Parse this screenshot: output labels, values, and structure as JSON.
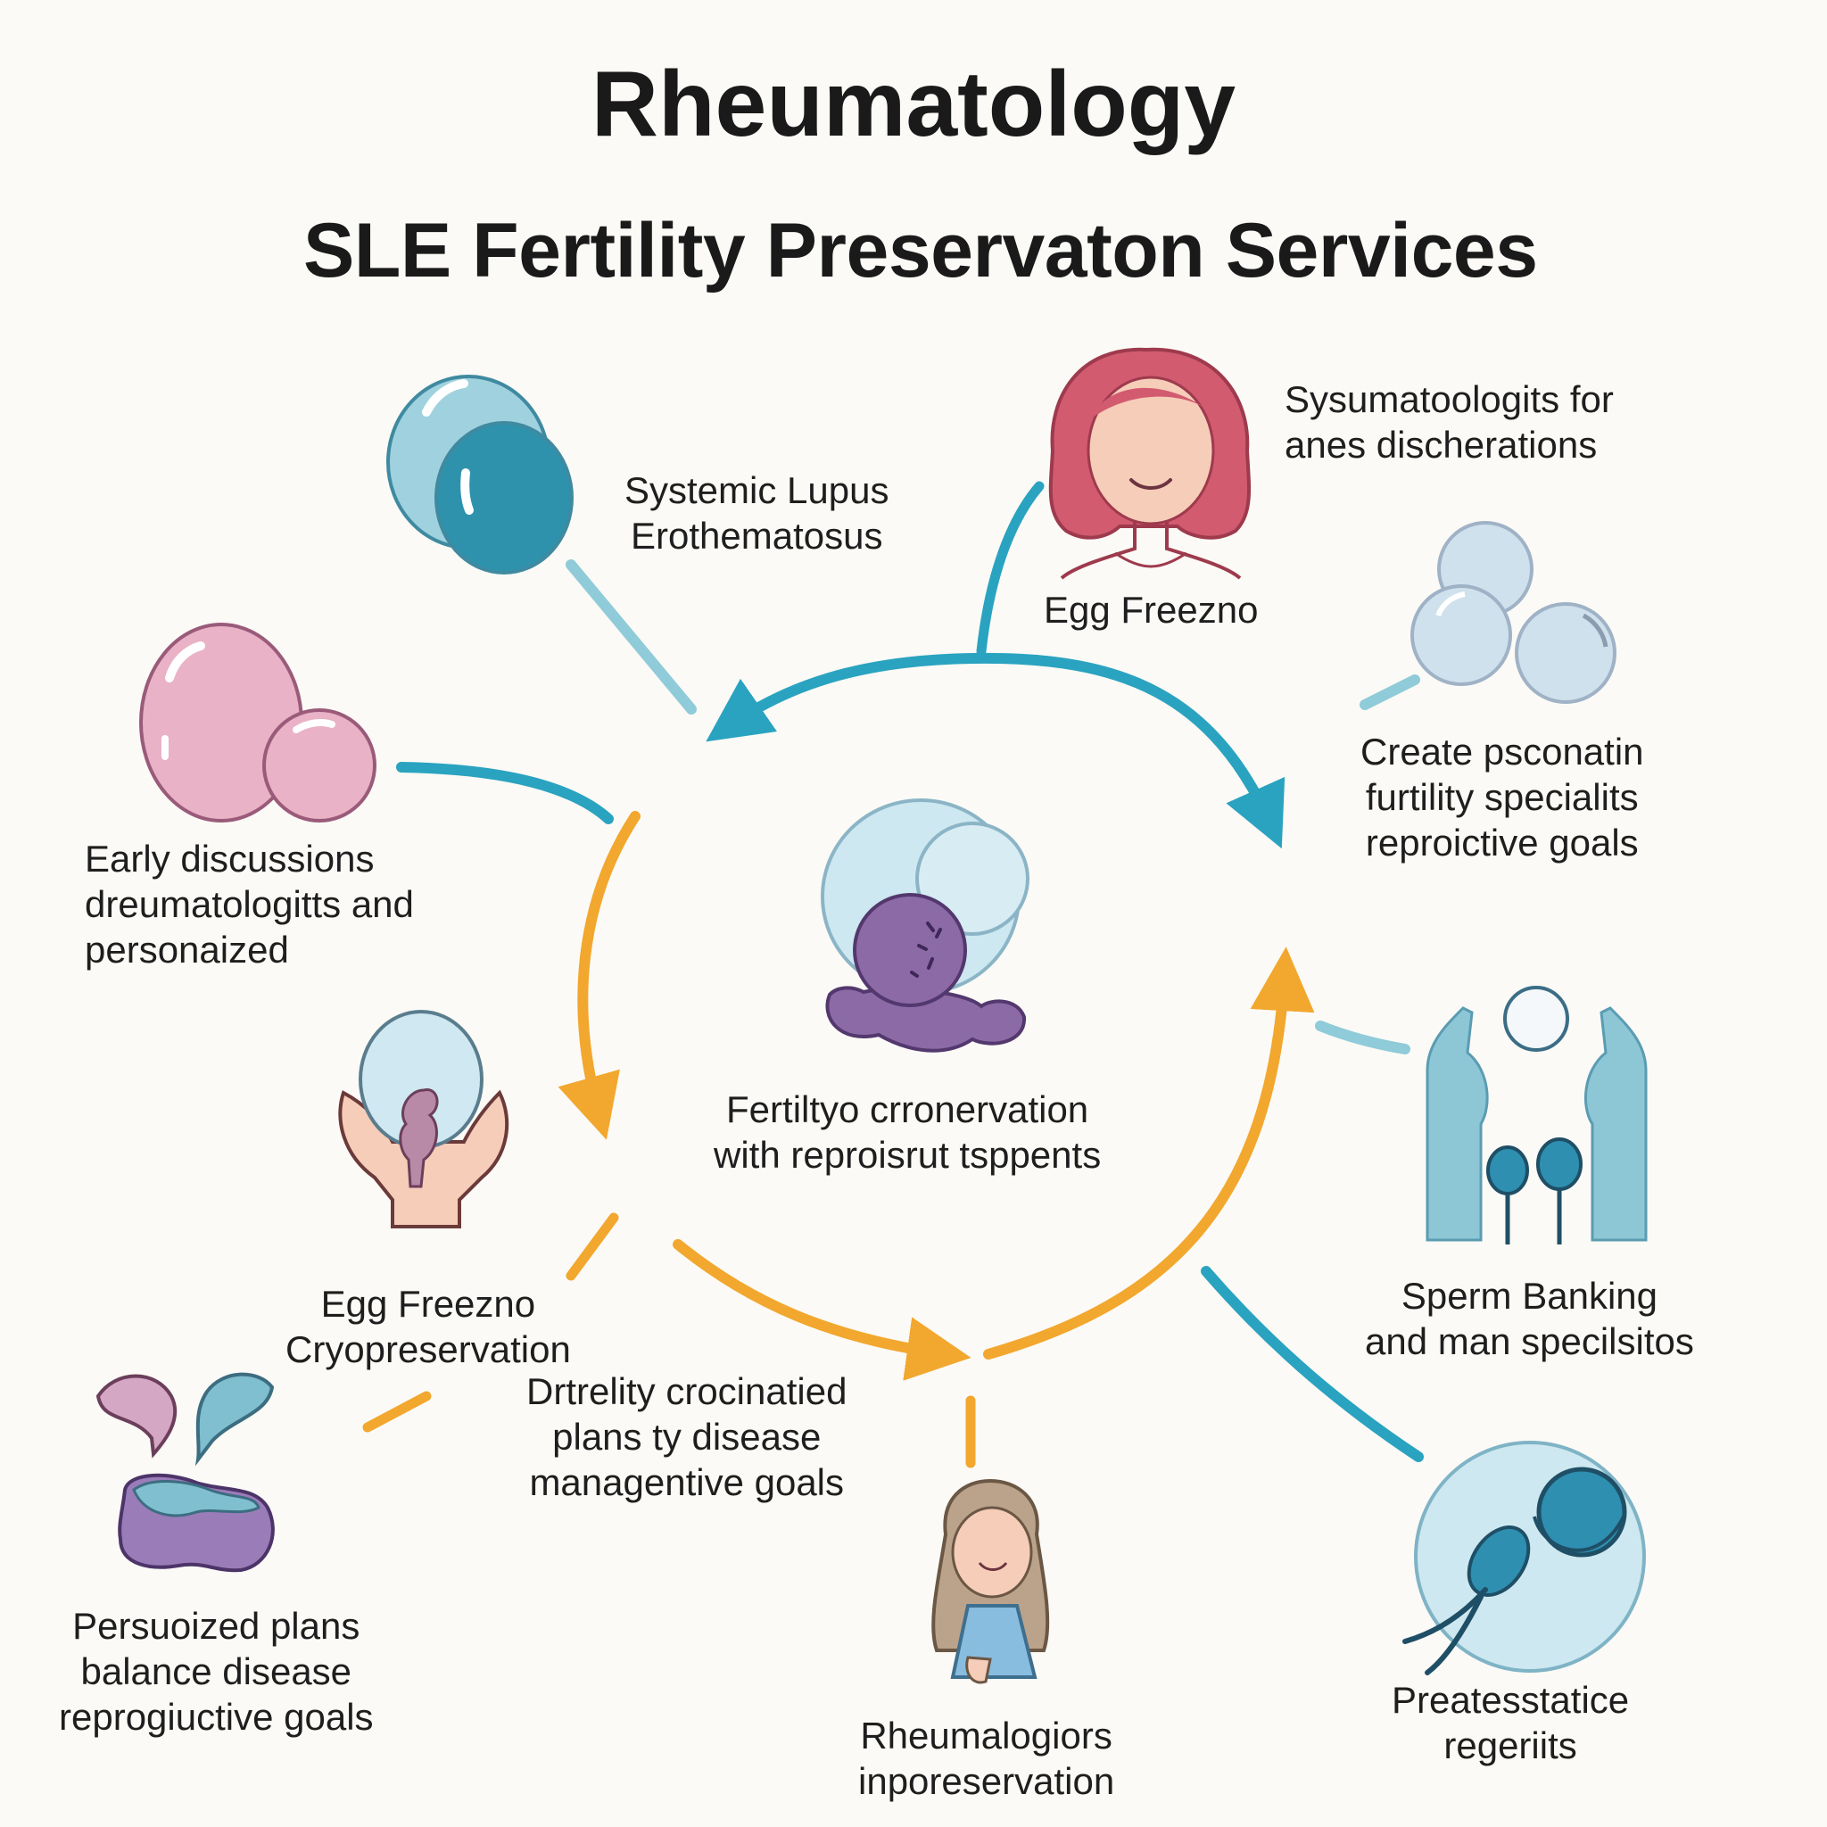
{
  "title": "Rheumatology",
  "subtitle": "SLE Fertility Preservaton Services",
  "colors": {
    "teal": "#2aa3c0",
    "orange": "#f2a72e",
    "pink": "#e9b2c6",
    "purple": "#8c6aa6",
    "light_blue": "#cfe8f1",
    "red_hair": "#d25b70",
    "background": "#fbfaf6"
  },
  "labels": {
    "sle": [
      "Systemic Lupus",
      "Erothematosus"
    ],
    "rheum_top": [
      "Sysumatoologits for",
      "anes discherations"
    ],
    "egg_top": "Egg Freezno",
    "create": [
      "Create psconatin",
      "furtility specialits",
      "reproictive goals"
    ],
    "early": [
      "Early discussions",
      "dreumatologitts and",
      "personaized"
    ],
    "center": [
      "Fertiltyo crronervation",
      "with reproisrut tsppents"
    ],
    "egg_cryo": [
      "Egg Freezno",
      "Cryopreservation"
    ],
    "drtility": [
      "Drtrelity crocinatied",
      "plans ty disease",
      "managentive goals"
    ],
    "sperm": [
      "Sperm Banking",
      "and man specilsitos"
    ],
    "persuo": [
      "Persuoized plans",
      "balance disease",
      "reprogiuctive goals"
    ],
    "rheumalogiors": [
      "Rheumalogiors",
      "inporeservation"
    ],
    "preatess": [
      "Preatesstatice",
      "regeriits"
    ]
  },
  "icons": [
    "cell-cluster-blue-icon",
    "woman-red-hair-icon",
    "bubble-trio-icon",
    "cell-pair-pink-icon",
    "egg-cell-purple-icon",
    "hands-holding-embryo-icon",
    "hands-sperm-icon",
    "organ-drops-icon",
    "girl-avatar-icon",
    "sperm-egg-icon"
  ]
}
